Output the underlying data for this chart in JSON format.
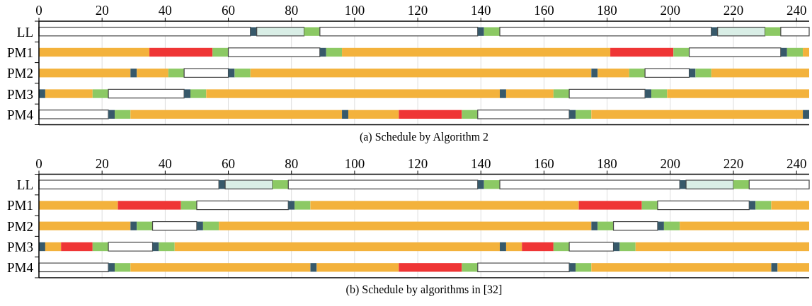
{
  "chart_data": [
    {
      "type": "bar",
      "orientation": "horizontal",
      "stacked": true,
      "title": "(a) Schedule by Algorithm 2",
      "categories": [
        "LL",
        "PM1",
        "PM2",
        "PM3",
        "PM4"
      ],
      "xlim": [
        0,
        244
      ],
      "xticks": [
        0,
        20,
        40,
        60,
        80,
        100,
        120,
        140,
        160,
        180,
        200,
        220,
        240
      ],
      "grid": "x",
      "series": [
        {
          "values": [
            67,
            35,
            29,
            2,
            22
          ],
          "colors": [
            "#ffffff",
            "#f3b23c",
            "#f3b23c",
            "#37596a",
            "#ffffff"
          ]
        },
        {
          "values": [
            2,
            20,
            2,
            15,
            2
          ],
          "colors": [
            "#37596a",
            "#ef3535",
            "#37596a",
            "#f3b23c",
            "#37596a"
          ]
        },
        {
          "values": [
            15,
            5,
            10,
            5,
            5
          ],
          "colors": [
            "#d9eee6",
            "#8cc964",
            "#f3b23c",
            "#8cc964",
            "#8cc964"
          ]
        },
        {
          "values": [
            5,
            29,
            5,
            24,
            67
          ],
          "colors": [
            "#8cc964",
            "#ffffff",
            "#8cc964",
            "#ffffff",
            "#f3b23c"
          ]
        },
        {
          "values": [
            50,
            2,
            14,
            2,
            2
          ],
          "colors": [
            "#ffffff",
            "#37596a",
            "#ffffff",
            "#37596a",
            "#37596a"
          ]
        },
        {
          "values": [
            2,
            5,
            2,
            5,
            16
          ],
          "colors": [
            "#37596a",
            "#8cc964",
            "#37596a",
            "#8cc964",
            "#f3b23c"
          ]
        },
        {
          "values": [
            5,
            85,
            5,
            93,
            20
          ],
          "colors": [
            "#8cc964",
            "#f3b23c",
            "#8cc964",
            "#f3b23c",
            "#ef3535"
          ]
        },
        {
          "values": [
            67,
            20,
            108,
            2,
            5
          ],
          "colors": [
            "#ffffff",
            "#ef3535",
            "#f3b23c",
            "#37596a",
            "#8cc964"
          ]
        },
        {
          "values": [
            2,
            5,
            2,
            15,
            29
          ],
          "colors": [
            "#37596a",
            "#8cc964",
            "#37596a",
            "#f3b23c",
            "#ffffff"
          ]
        },
        {
          "values": [
            15,
            29,
            10,
            5,
            2
          ],
          "colors": [
            "#d9eee6",
            "#ffffff",
            "#f3b23c",
            "#8cc964",
            "#37596a"
          ]
        },
        {
          "values": [
            5,
            2,
            5,
            24,
            5
          ],
          "colors": [
            "#8cc964",
            "#37596a",
            "#8cc964",
            "#ffffff",
            "#8cc964"
          ]
        },
        {
          "values": [
            9,
            5,
            14,
            2,
            67
          ],
          "colors": [
            "#ffffff",
            "#8cc964",
            "#ffffff",
            "#37596a",
            "#f3b23c"
          ]
        },
        {
          "values": [
            null,
            2,
            2,
            5,
            2
          ],
          "colors": [
            null,
            "#f3b23c",
            "#37596a",
            "#8cc964",
            "#37596a"
          ]
        },
        {
          "values": [
            null,
            null,
            5,
            45,
            null
          ],
          "colors": [
            null,
            null,
            "#8cc964",
            "#f3b23c",
            null
          ]
        },
        {
          "values": [
            null,
            null,
            31,
            null,
            null
          ],
          "colors": [
            null,
            null,
            "#f3b23c",
            null,
            null
          ]
        }
      ]
    },
    {
      "type": "bar",
      "orientation": "horizontal",
      "stacked": true,
      "title": "(b) Schedule by algorithms in [32]",
      "categories": [
        "LL",
        "PM1",
        "PM2",
        "PM3",
        "PM4"
      ],
      "xlim": [
        0,
        244
      ],
      "xticks": [
        0,
        20,
        40,
        60,
        80,
        100,
        120,
        140,
        160,
        180,
        200,
        220,
        240
      ],
      "grid": "x",
      "series": [
        {
          "values": [
            57,
            25,
            29,
            2,
            22
          ],
          "colors": [
            "#ffffff",
            "#f3b23c",
            "#f3b23c",
            "#37596a",
            "#ffffff"
          ]
        },
        {
          "values": [
            2,
            20,
            2,
            5,
            2
          ],
          "colors": [
            "#37596a",
            "#ef3535",
            "#37596a",
            "#f3b23c",
            "#37596a"
          ]
        },
        {
          "values": [
            15,
            5,
            5,
            10,
            5
          ],
          "colors": [
            "#d9eee6",
            "#8cc964",
            "#8cc964",
            "#ef3535",
            "#8cc964"
          ]
        },
        {
          "values": [
            5,
            29,
            14,
            5,
            57
          ],
          "colors": [
            "#8cc964",
            "#ffffff",
            "#ffffff",
            "#8cc964",
            "#f3b23c"
          ]
        },
        {
          "values": [
            60,
            2,
            2,
            14,
            2
          ],
          "colors": [
            "#ffffff",
            "#37596a",
            "#37596a",
            "#ffffff",
            "#37596a"
          ]
        },
        {
          "values": [
            2,
            5,
            5,
            2,
            26
          ],
          "colors": [
            "#37596a",
            "#8cc964",
            "#8cc964",
            "#37596a",
            "#f3b23c"
          ]
        },
        {
          "values": [
            5,
            85,
            118,
            5,
            20
          ],
          "colors": [
            "#8cc964",
            "#f3b23c",
            "#f3b23c",
            "#8cc964",
            "#ef3535"
          ]
        },
        {
          "values": [
            57,
            20,
            2,
            103,
            5
          ],
          "colors": [
            "#ffffff",
            "#ef3535",
            "#37596a",
            "#f3b23c",
            "#8cc964"
          ]
        },
        {
          "values": [
            2,
            5,
            5,
            2,
            29
          ],
          "colors": [
            "#37596a",
            "#8cc964",
            "#8cc964",
            "#37596a",
            "#ffffff"
          ]
        },
        {
          "values": [
            15,
            29,
            14,
            5,
            2
          ],
          "colors": [
            "#d9eee6",
            "#ffffff",
            "#ffffff",
            "#f3b23c",
            "#37596a"
          ]
        },
        {
          "values": [
            5,
            2,
            2,
            10,
            5
          ],
          "colors": [
            "#8cc964",
            "#37596a",
            "#37596a",
            "#ef3535",
            "#8cc964"
          ]
        },
        {
          "values": [
            19,
            5,
            5,
            5,
            57
          ],
          "colors": [
            "#ffffff",
            "#8cc964",
            "#8cc964",
            "#8cc964",
            "#f3b23c"
          ]
        },
        {
          "values": [
            null,
            12,
            41,
            14,
            2
          ],
          "colors": [
            null,
            "#f3b23c",
            "#f3b23c",
            "#ffffff",
            "#37596a"
          ]
        },
        {
          "values": [
            null,
            null,
            null,
            2,
            10
          ],
          "colors": [
            null,
            null,
            null,
            "#37596a",
            "#f3b23c"
          ]
        },
        {
          "values": [
            null,
            null,
            null,
            5,
            null
          ],
          "colors": [
            null,
            null,
            null,
            "#8cc964",
            null
          ]
        },
        {
          "values": [
            null,
            null,
            null,
            55,
            null
          ],
          "colors": [
            null,
            null,
            null,
            "#f3b23c",
            null
          ]
        }
      ]
    }
  ]
}
